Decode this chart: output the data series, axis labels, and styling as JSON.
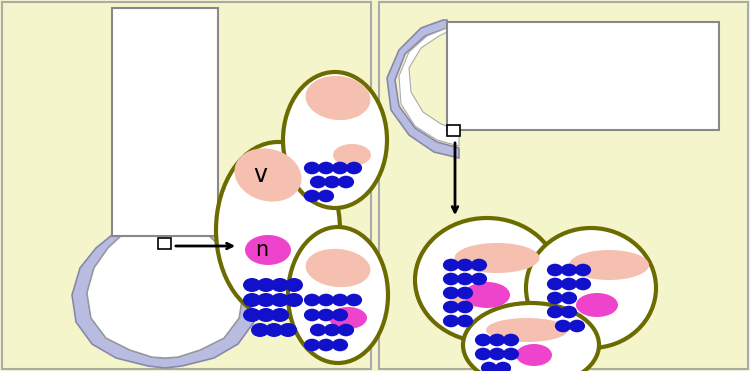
{
  "bg_color": "#f5f5cc",
  "cell_wall_color": "#6b6b00",
  "vacuole_color": "#f5c0b0",
  "nucleus_color": "#ee44cc",
  "starch_color": "#1111cc",
  "root_fill": "#b8bce0",
  "root_outline": "#8888aa",
  "label_v": "v",
  "label_n": "n"
}
